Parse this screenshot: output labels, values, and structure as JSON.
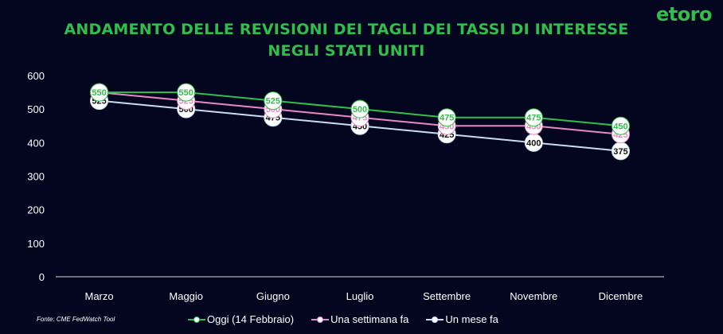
{
  "logo": "etoro",
  "title_line1": "ANDAMENTO DELLE REVISIONI DEI TAGLI DEI TASSI DI INTERESSE",
  "title_line2": "NEGLI STATI UNITI",
  "source": "Fonte: CME FedWatch Tool",
  "chart_data": {
    "type": "line",
    "title": "ANDAMENTO DELLE REVISIONI DEI TAGLI DEI TASSI DI INTERESSE NEGLI STATI UNITI",
    "categories": [
      "Marzo",
      "Maggio",
      "Giugno",
      "Luglio",
      "Settembre",
      "Novembre",
      "Dicembre"
    ],
    "ylim": [
      0,
      600
    ],
    "yticks": [
      0,
      100,
      200,
      300,
      400,
      500,
      600
    ],
    "grid": false,
    "legend_position": "bottom",
    "series": [
      {
        "name": "Oggi (14 Febbraio)",
        "color": "#2fbf4a",
        "values": [
          550,
          550,
          525,
          500,
          475,
          475,
          450
        ]
      },
      {
        "name": "Una settimana fa",
        "color": "#e889c4",
        "values": [
          550,
          525,
          500,
          475,
          450,
          450,
          425
        ]
      },
      {
        "name": "Un mese fa",
        "color": "#c9dcf3",
        "values": [
          525,
          500,
          475,
          450,
          425,
          400,
          375
        ]
      }
    ]
  }
}
